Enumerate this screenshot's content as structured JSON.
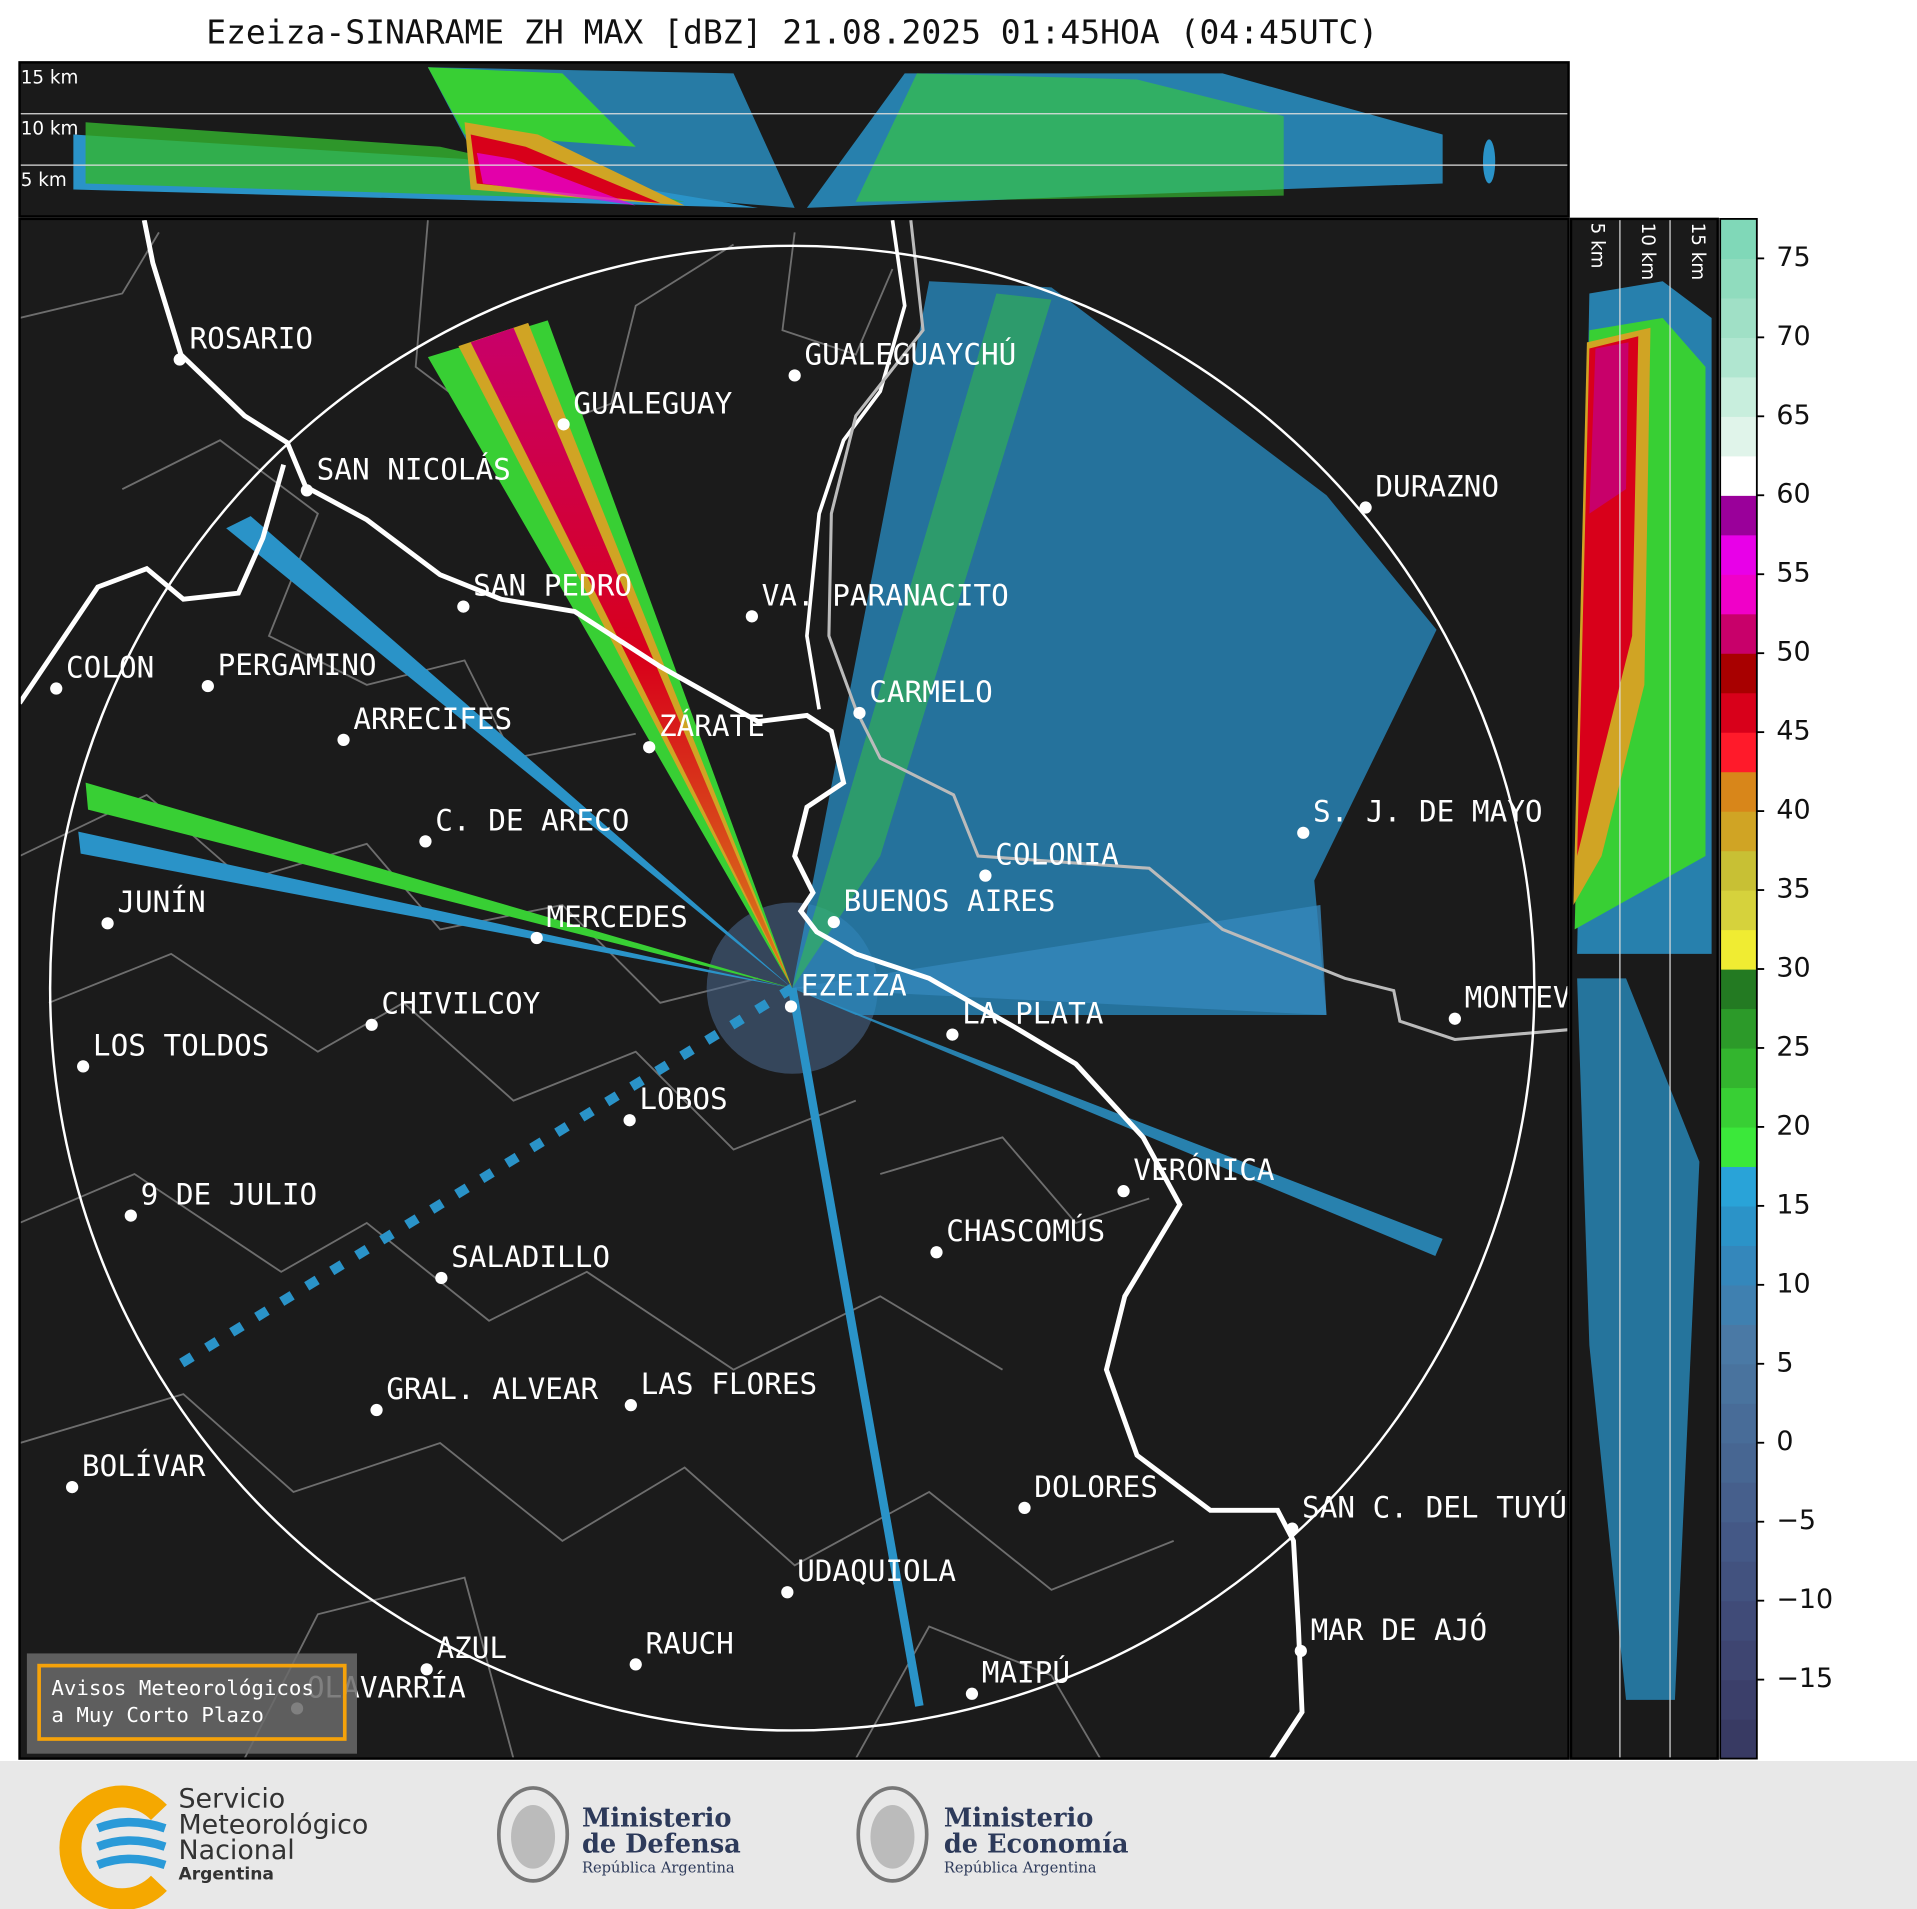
{
  "title": "Ezeiza-SINARAME ZH MAX [dBZ] 21.08.2025 01:45HOA (04:45UTC)",
  "top_panel": {
    "altitude_labels": [
      "15 km",
      "10 km",
      "5 km"
    ]
  },
  "side_panel": {
    "altitude_labels": [
      "5 km",
      "10 km",
      "15 km"
    ]
  },
  "map": {
    "cities": [
      "ROSARIO",
      "GUALEGUAYCHÚ",
      "GUALEGUAY",
      "SAN NICOLÁS",
      "DURAZNO",
      "SAN PEDRO",
      "VA. PARANACITO",
      "COLON",
      "PERGAMINO",
      "CARMELO",
      "ARRECIFES",
      "ZÁRATE",
      "S. J. DE MAYO",
      "C. DE ARECO",
      "COLONIA",
      "BUENOS AIRES",
      "JUNÍN",
      "MERCEDES",
      "EZEIZA",
      "MONTEV",
      "CHIVILCOY",
      "LA PLATA",
      "LOS TOLDOS",
      "LOBOS",
      "VERÓNICA",
      "9 DE JULIO",
      "CHASCOMÚS",
      "SALADILLO",
      "GRAL. ALVEAR",
      "LAS FLORES",
      "BOLÍVAR",
      "DOLORES",
      "SAN C. DEL TUYÚ",
      "UDAQUIOLA",
      "MAR DE AJÓ",
      "AZUL",
      "RAUCH",
      "MAIPÚ",
      "OLAVARRÍA"
    ]
  },
  "colorbar": {
    "lim": [
      -20,
      77.5
    ],
    "ticks": [
      {
        "value": -15,
        "label": "−15"
      },
      {
        "value": -10,
        "label": "−10"
      },
      {
        "value": -5,
        "label": "−5"
      },
      0,
      5,
      10,
      15,
      20,
      25,
      30,
      35,
      40,
      45,
      50,
      55,
      60,
      65,
      70,
      75
    ],
    "colors": [
      "#383a63",
      "#3b3f6a",
      "#3e4571",
      "#404b78",
      "#42527f",
      "#445886",
      "#465f8c",
      "#476692",
      "#486c98",
      "#49739e",
      "#4a79a5",
      "#3f80b0",
      "#3487bb",
      "#2b93c8",
      "#29a3d8",
      "#3be83a",
      "#38cf34",
      "#33b52e",
      "#2c9a29",
      "#237a22",
      "#f0ec32",
      "#d6d23c",
      "#c8c034",
      "#d0a424",
      "#d8861a",
      "#ff1a2a",
      "#d8001a",
      "#a80000",
      "#c8006a",
      "#f000c8",
      "#e800e8",
      "#9a009a",
      "#ffffff",
      "#e0f4ea",
      "#c8eedd",
      "#b0e6d0",
      "#a0e0c6",
      "#90dcbe",
      "#80d8b8"
    ]
  },
  "warning_box": {
    "lines": [
      "Avisos Meteorológicos",
      "a Muy Corto Plazo"
    ]
  },
  "footer": {
    "logos": [
      {
        "lines": [
          "Servicio",
          "Meteorológico",
          "Nacional",
          "Argentina"
        ]
      },
      {
        "lines": [
          "Ministerio",
          "de Defensa",
          "República Argentina"
        ]
      },
      {
        "lines": [
          "Ministerio",
          "de Economía",
          "República Argentina"
        ]
      }
    ]
  }
}
